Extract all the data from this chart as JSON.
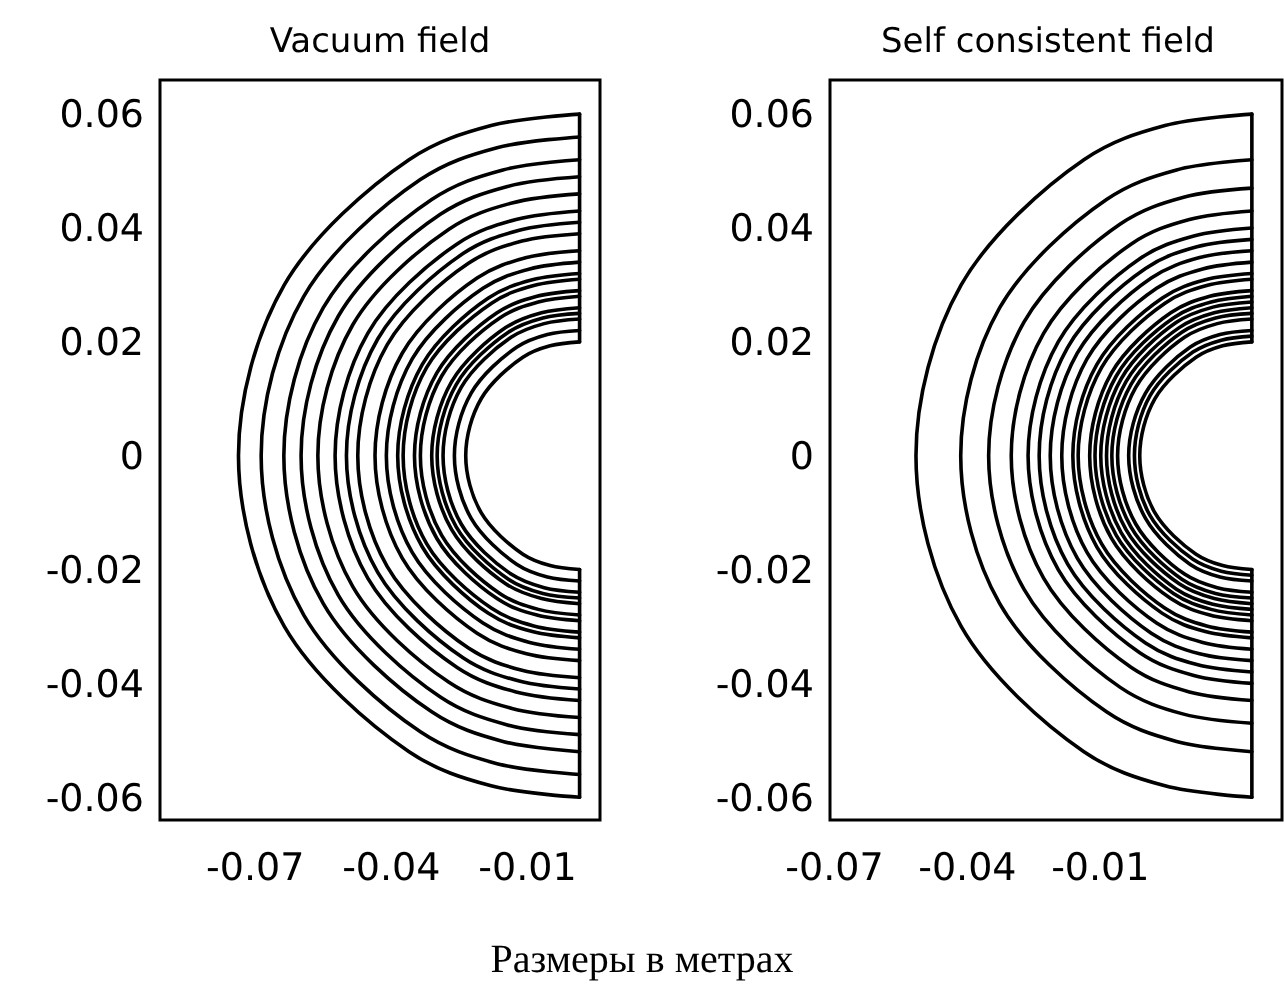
{
  "chart_data": [
    {
      "type": "line",
      "title": "Vacuum field",
      "annotations": [
        "Размеры в метрах"
      ],
      "xlim": [
        -0.091,
        0.006
      ],
      "ylim": [
        -0.064,
        0.066
      ],
      "xticks": [
        -0.07,
        -0.04,
        -0.01
      ],
      "yticks": [
        0.06,
        0.04,
        0.02,
        0,
        -0.02,
        -0.04,
        -0.06
      ],
      "series": [
        {
          "color": "#000000",
          "x": [
            0.0015,
            0.0015
          ],
          "values": [
            0.06,
            0.02
          ]
        },
        {
          "color": "#000000",
          "x": [
            0.0015,
            0.0015
          ],
          "values": [
            -0.02,
            -0.06
          ]
        },
        {
          "color": "#000000",
          "x": [
            0.0015,
            -0.018,
            -0.0361,
            -0.0636,
            -0.0737,
            -0.0636,
            -0.0361,
            -0.018,
            0.0015
          ],
          "values": [
            0.06,
            0.058,
            0.052,
            0.03,
            0,
            -0.03,
            -0.052,
            -0.058,
            -0.06
          ]
        },
        {
          "color": "#000000",
          "x": [
            0.0015,
            -0.0167,
            -0.0336,
            -0.0593,
            -0.0687,
            -0.0593,
            -0.0336,
            -0.0167,
            0.0015
          ],
          "values": [
            0.056,
            0.0541,
            0.0485,
            0.028,
            0,
            -0.028,
            -0.0485,
            -0.0541,
            -0.056
          ]
        },
        {
          "color": "#000000",
          "x": [
            0.0015,
            -0.0154,
            -0.0311,
            -0.055,
            -0.0637,
            -0.055,
            -0.0311,
            -0.0154,
            0.0015
          ],
          "values": [
            0.052,
            0.0502,
            0.045,
            0.026,
            0,
            -0.026,
            -0.045,
            -0.0502,
            -0.052
          ]
        },
        {
          "color": "#000000",
          "x": [
            0.0015,
            -0.0144,
            -0.0292,
            -0.0517,
            -0.0599,
            -0.0517,
            -0.0292,
            -0.0144,
            0.0015
          ],
          "values": [
            0.049,
            0.0473,
            0.0424,
            0.0245,
            0,
            -0.0245,
            -0.0424,
            -0.0473,
            -0.049
          ]
        },
        {
          "color": "#000000",
          "x": [
            0.0015,
            -0.0134,
            -0.0273,
            -0.0485,
            -0.0562,
            -0.0485,
            -0.0273,
            -0.0134,
            0.0015
          ],
          "values": [
            0.046,
            0.0444,
            0.0398,
            0.023,
            0,
            -0.023,
            -0.0398,
            -0.0444,
            -0.046
          ]
        },
        {
          "color": "#000000",
          "x": [
            0.0015,
            -0.0125,
            -0.0255,
            -0.0452,
            -0.0524,
            -0.0452,
            -0.0255,
            -0.0125,
            0.0015
          ],
          "values": [
            0.043,
            0.0415,
            0.0372,
            0.0215,
            0,
            -0.0215,
            -0.0372,
            -0.0415,
            -0.043
          ]
        },
        {
          "color": "#000000",
          "x": [
            0.0015,
            -0.0118,
            -0.0242,
            -0.043,
            -0.0499,
            -0.043,
            -0.0242,
            -0.0118,
            0.0015
          ],
          "values": [
            0.041,
            0.0396,
            0.0355,
            0.0205,
            0,
            -0.0205,
            -0.0355,
            -0.0396,
            -0.041
          ]
        },
        {
          "color": "#000000",
          "x": [
            0.0015,
            -0.0112,
            -0.023,
            -0.0409,
            -0.0474,
            -0.0409,
            -0.023,
            -0.0112,
            0.0015
          ],
          "values": [
            0.039,
            0.0377,
            0.0338,
            0.0195,
            0,
            -0.0195,
            -0.0338,
            -0.0377,
            -0.039
          ]
        },
        {
          "color": "#000000",
          "x": [
            0.0015,
            -0.0102,
            -0.0211,
            -0.0376,
            -0.0436,
            -0.0376,
            -0.0211,
            -0.0102,
            0.0015
          ],
          "values": [
            0.036,
            0.0348,
            0.0312,
            0.018,
            0,
            -0.018,
            -0.0312,
            -0.0348,
            -0.036
          ]
        },
        {
          "color": "#000000",
          "x": [
            0.0015,
            -0.0095,
            -0.0198,
            -0.0354,
            -0.0411,
            -0.0354,
            -0.0198,
            -0.0095,
            0.0015
          ],
          "values": [
            0.034,
            0.0328,
            0.0294,
            0.017,
            0,
            -0.017,
            -0.0294,
            -0.0328,
            -0.034
          ]
        },
        {
          "color": "#000000",
          "x": [
            0.0015,
            -0.0089,
            -0.0186,
            -0.0332,
            -0.0386,
            -0.0332,
            -0.0186,
            -0.0089,
            0.0015
          ],
          "values": [
            0.032,
            0.0309,
            0.0277,
            0.016,
            0,
            -0.016,
            -0.0277,
            -0.0309,
            -0.032
          ]
        },
        {
          "color": "#000000",
          "x": [
            0.0015,
            -0.0086,
            -0.0179,
            -0.0322,
            -0.0374,
            -0.0322,
            -0.0179,
            -0.0086,
            0.0015
          ],
          "values": [
            0.031,
            0.0299,
            0.0268,
            0.0155,
            0,
            -0.0155,
            -0.0268,
            -0.0299,
            -0.031
          ]
        },
        {
          "color": "#000000",
          "x": [
            0.0015,
            -0.0079,
            -0.0167,
            -0.03,
            -0.0349,
            -0.03,
            -0.0167,
            -0.0079,
            0.0015
          ],
          "values": [
            0.029,
            0.028,
            0.0251,
            0.0145,
            0,
            -0.0145,
            -0.0251,
            -0.028,
            -0.029
          ]
        },
        {
          "color": "#000000",
          "x": [
            0.0015,
            -0.0076,
            -0.0161,
            -0.0289,
            -0.0336,
            -0.0289,
            -0.0161,
            -0.0076,
            0.0015
          ],
          "values": [
            0.028,
            0.027,
            0.0242,
            0.014,
            0,
            -0.014,
            -0.0242,
            -0.027,
            -0.028
          ]
        },
        {
          "color": "#000000",
          "x": [
            0.0015,
            -0.0069,
            -0.0148,
            -0.0267,
            -0.0311,
            -0.0267,
            -0.0148,
            -0.0069,
            0.0015
          ],
          "values": [
            0.026,
            0.0251,
            0.0225,
            0.013,
            0,
            -0.013,
            -0.0225,
            -0.0251,
            -0.026
          ]
        },
        {
          "color": "#000000",
          "x": [
            0.0015,
            -0.0066,
            -0.0142,
            -0.0257,
            -0.0299,
            -0.0257,
            -0.0142,
            -0.0066,
            0.0015
          ],
          "values": [
            0.025,
            0.0242,
            0.0217,
            0.0125,
            0,
            -0.0125,
            -0.0217,
            -0.0242,
            -0.025
          ]
        },
        {
          "color": "#000000",
          "x": [
            0.0015,
            -0.0063,
            -0.0136,
            -0.0246,
            -0.0286,
            -0.0246,
            -0.0136,
            -0.0063,
            0.0015
          ],
          "values": [
            0.024,
            0.0232,
            0.0208,
            0.012,
            0,
            -0.012,
            -0.0208,
            -0.0232,
            -0.024
          ]
        },
        {
          "color": "#000000",
          "x": [
            0.0015,
            -0.0056,
            -0.0123,
            -0.0224,
            -0.0261,
            -0.0224,
            -0.0123,
            -0.0056,
            0.0015
          ],
          "values": [
            0.022,
            0.0213,
            0.0191,
            0.011,
            0,
            -0.011,
            -0.0191,
            -0.0213,
            -0.022
          ]
        },
        {
          "color": "#000000",
          "x": [
            0.0015,
            -0.005,
            -0.011,
            -0.0202,
            -0.0236,
            -0.0202,
            -0.011,
            -0.005,
            0.0015
          ],
          "values": [
            0.02,
            0.0193,
            0.0173,
            0.01,
            0,
            -0.01,
            -0.0173,
            -0.0193,
            -0.02
          ]
        }
      ]
    },
    {
      "type": "line",
      "title": "Self consistent field",
      "xlim": [
        -0.071,
        0.031
      ],
      "ylim": [
        -0.064,
        0.066
      ],
      "xticks": [
        -0.07,
        -0.04,
        -0.01
      ],
      "yticks": [
        0.06,
        0.04,
        0.02,
        0,
        -0.02,
        -0.04,
        -0.06
      ],
      "series": [
        {
          "color": "#000000",
          "x": [
            0.0242,
            0.0242
          ],
          "values": [
            0.06,
            0.02
          ]
        },
        {
          "color": "#000000",
          "x": [
            0.0242,
            0.0242
          ],
          "values": [
            -0.02,
            -0.06
          ]
        },
        {
          "color": "#000000",
          "x": [
            0.0242,
            0.0046,
            -0.0137,
            -0.0414,
            -0.0516,
            -0.0414,
            -0.0137,
            0.0046,
            0.0242
          ],
          "values": [
            0.06,
            0.058,
            0.052,
            0.03,
            0,
            -0.03,
            -0.052,
            -0.058,
            -0.06
          ]
        },
        {
          "color": "#000000",
          "x": [
            0.0242,
            0.0072,
            -0.0086,
            -0.0327,
            -0.0415,
            -0.0327,
            -0.0086,
            0.0072,
            0.0242
          ],
          "values": [
            0.052,
            0.0502,
            0.045,
            0.026,
            0,
            -0.026,
            -0.045,
            -0.0502,
            -0.052
          ]
        },
        {
          "color": "#000000",
          "x": [
            0.0242,
            0.0088,
            -0.0055,
            -0.0272,
            -0.0352,
            -0.0272,
            -0.0055,
            0.0088,
            0.0242
          ],
          "values": [
            0.047,
            0.0454,
            0.0407,
            0.0235,
            0,
            -0.0235,
            -0.0407,
            -0.0454,
            -0.047
          ]
        },
        {
          "color": "#000000",
          "x": [
            0.0242,
            0.0101,
            -0.003,
            -0.0228,
            -0.0301,
            -0.0228,
            -0.003,
            0.0101,
            0.0242
          ],
          "values": [
            0.043,
            0.0415,
            0.0372,
            0.0215,
            0,
            -0.0215,
            -0.0372,
            -0.0415,
            -0.043
          ]
        },
        {
          "color": "#000000",
          "x": [
            0.0242,
            0.0111,
            -0.0011,
            -0.0195,
            -0.0263,
            -0.0195,
            -0.0011,
            0.0111,
            0.0242
          ],
          "values": [
            0.04,
            0.0386,
            0.0346,
            0.02,
            0,
            -0.02,
            -0.0346,
            -0.0386,
            -0.04
          ]
        },
        {
          "color": "#000000",
          "x": [
            0.0242,
            0.0118,
            0.0002,
            -0.0174,
            -0.0238,
            -0.0174,
            0.0002,
            0.0118,
            0.0242
          ],
          "values": [
            0.038,
            0.0367,
            0.0329,
            0.019,
            0,
            -0.019,
            -0.0329,
            -0.0367,
            -0.038
          ]
        },
        {
          "color": "#000000",
          "x": [
            0.0242,
            0.0124,
            0.0015,
            -0.0152,
            -0.0213,
            -0.0152,
            0.0015,
            0.0124,
            0.0242
          ],
          "values": [
            0.036,
            0.0348,
            0.0312,
            0.018,
            0,
            -0.018,
            -0.0312,
            -0.0348,
            -0.036
          ]
        },
        {
          "color": "#000000",
          "x": [
            0.0242,
            0.0131,
            0.0027,
            -0.013,
            -0.0187,
            -0.013,
            0.0027,
            0.0131,
            0.0242
          ],
          "values": [
            0.034,
            0.0328,
            0.0294,
            0.017,
            0,
            -0.017,
            -0.0294,
            -0.0328,
            -0.034
          ]
        },
        {
          "color": "#000000",
          "x": [
            0.0242,
            0.0137,
            0.004,
            -0.0108,
            -0.0162,
            -0.0108,
            0.004,
            0.0137,
            0.0242
          ],
          "values": [
            0.032,
            0.0309,
            0.0277,
            0.016,
            0,
            -0.016,
            -0.0277,
            -0.0309,
            -0.032
          ]
        },
        {
          "color": "#000000",
          "x": [
            0.0242,
            0.014,
            0.0046,
            -0.0097,
            -0.015,
            -0.0097,
            0.0046,
            0.014,
            0.0242
          ],
          "values": [
            0.031,
            0.0299,
            0.0268,
            0.0155,
            0,
            -0.0155,
            -0.0268,
            -0.0299,
            -0.031
          ]
        },
        {
          "color": "#000000",
          "x": [
            0.0242,
            0.0147,
            0.0059,
            -0.0075,
            -0.0124,
            -0.0075,
            0.0059,
            0.0147,
            0.0242
          ],
          "values": [
            0.029,
            0.028,
            0.0251,
            0.0145,
            0,
            -0.0145,
            -0.0251,
            -0.028,
            -0.029
          ]
        },
        {
          "color": "#000000",
          "x": [
            0.0242,
            0.015,
            0.0065,
            -0.0064,
            -0.0112,
            -0.0064,
            0.0065,
            0.015,
            0.0242
          ],
          "values": [
            0.028,
            0.027,
            0.0242,
            0.014,
            0,
            -0.014,
            -0.0242,
            -0.027,
            -0.028
          ]
        },
        {
          "color": "#000000",
          "x": [
            0.0242,
            0.0154,
            0.0071,
            -0.0053,
            -0.0099,
            -0.0053,
            0.0071,
            0.0154,
            0.0242
          ],
          "values": [
            0.027,
            0.0261,
            0.0234,
            0.0135,
            0,
            -0.0135,
            -0.0234,
            -0.0261,
            -0.027
          ]
        },
        {
          "color": "#000000",
          "x": [
            0.0242,
            0.0157,
            0.0078,
            -0.0042,
            -0.0086,
            -0.0042,
            0.0078,
            0.0157,
            0.0242
          ],
          "values": [
            0.026,
            0.0251,
            0.0225,
            0.013,
            0,
            -0.013,
            -0.0225,
            -0.0251,
            -0.026
          ]
        },
        {
          "color": "#000000",
          "x": [
            0.0242,
            0.016,
            0.0084,
            -0.0031,
            -0.0074,
            -0.0031,
            0.0084,
            0.016,
            0.0242
          ],
          "values": [
            0.025,
            0.0242,
            0.0217,
            0.0125,
            0,
            -0.0125,
            -0.0217,
            -0.0242,
            -0.025
          ]
        },
        {
          "color": "#000000",
          "x": [
            0.0242,
            0.0164,
            0.009,
            -0.002,
            -0.0061,
            -0.002,
            0.009,
            0.0164,
            0.0242
          ],
          "values": [
            0.024,
            0.0232,
            0.0208,
            0.012,
            0,
            -0.012,
            -0.0208,
            -0.0232,
            -0.024
          ]
        },
        {
          "color": "#000000",
          "x": [
            0.0242,
            0.017,
            0.0103,
            0.0002,
            -0.0036,
            0.0002,
            0.0103,
            0.017,
            0.0242
          ],
          "values": [
            0.022,
            0.0213,
            0.0191,
            0.011,
            0,
            -0.011,
            -0.0191,
            -0.0213,
            -0.022
          ]
        },
        {
          "color": "#000000",
          "x": [
            0.0242,
            0.0173,
            0.0109,
            0.0012,
            -0.0023,
            0.0012,
            0.0109,
            0.0173,
            0.0242
          ],
          "values": [
            0.021,
            0.0203,
            0.0182,
            0.0105,
            0,
            -0.0105,
            -0.0182,
            -0.0203,
            -0.021
          ]
        },
        {
          "color": "#000000",
          "x": [
            0.0242,
            0.0176,
            0.0116,
            0.0023,
            -0.0011,
            0.0023,
            0.0116,
            0.0176,
            0.0242
          ],
          "values": [
            0.02,
            0.0193,
            0.0173,
            0.01,
            0,
            -0.01,
            -0.0173,
            -0.0193,
            -0.02
          ]
        }
      ]
    }
  ]
}
